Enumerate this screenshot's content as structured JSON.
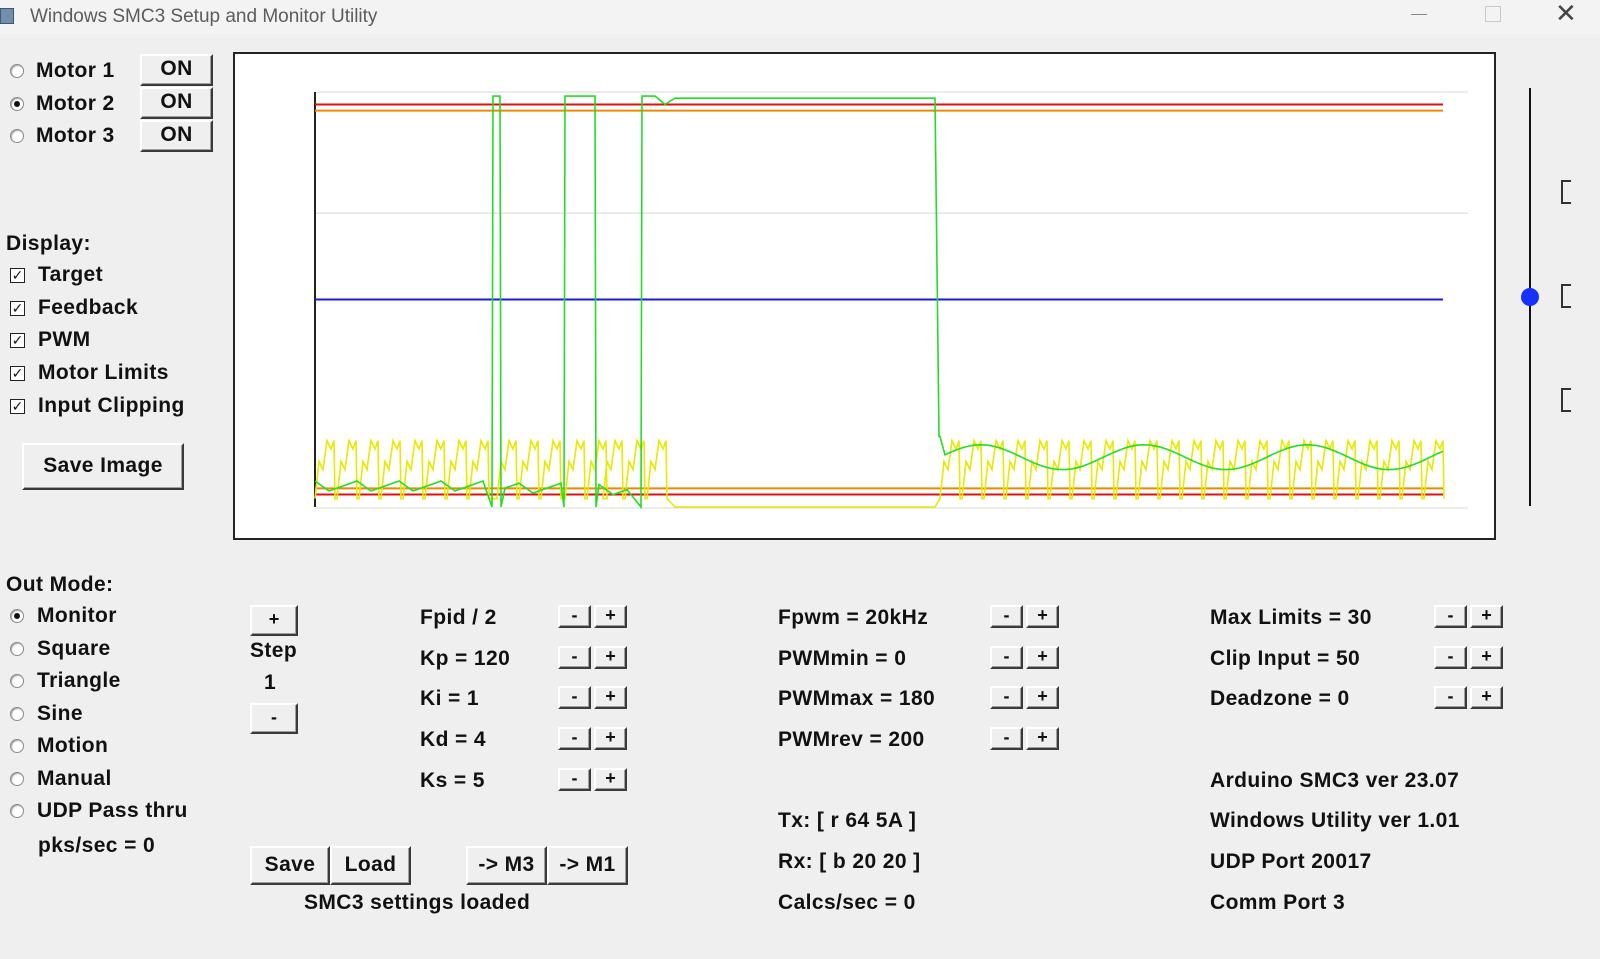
{
  "window": {
    "title": "Windows SMC3 Setup and Monitor Utility",
    "close_glyph": "✕"
  },
  "motors": [
    {
      "label": "Motor 1",
      "button": "ON",
      "selected": false
    },
    {
      "label": "Motor 2",
      "button": "ON",
      "selected": true
    },
    {
      "label": "Motor 3",
      "button": "ON",
      "selected": false
    }
  ],
  "display": {
    "heading": "Display:",
    "items": [
      "Target",
      "Feedback",
      "PWM",
      "Motor Limits",
      "Input Clipping"
    ],
    "check_mark": "✓",
    "save_image": "Save Image"
  },
  "out_mode": {
    "heading": "Out Mode:",
    "options": [
      "Monitor",
      "Square",
      "Triangle",
      "Sine",
      "Motion",
      "Manual",
      "UDP Pass thru"
    ],
    "selected": "Monitor",
    "pks": "pks/sec = 0"
  },
  "step": {
    "plus": "+",
    "label": "Step",
    "value": "1",
    "minus": "-"
  },
  "pid": {
    "params": [
      "Fpid / 2",
      "Kp = 120",
      "Ki = 1",
      "Kd = 4",
      "Ks = 5"
    ],
    "minus": "-",
    "plus": "+",
    "save": "Save",
    "load": "Load",
    "to_m3": "-> M3",
    "to_m1": "-> M1",
    "status": "SMC3 settings loaded"
  },
  "pwm": {
    "params": [
      "Fpwm = 20kHz",
      "PWMmin = 0",
      "PWMmax = 180",
      "PWMrev = 200"
    ],
    "tx": "Tx: [ r 64 5A ]",
    "rx": "Rx: [ b 20 20 ]",
    "calcs": "Calcs/sec = 0"
  },
  "limits": {
    "params": [
      "Max Limits = 30",
      "Clip Input = 50",
      "Deadzone = 0"
    ],
    "info": [
      "Arduino SMC3 ver 23.07",
      "Windows Utility ver 1.01",
      "UDP Port 20017",
      "Comm Port 3"
    ]
  },
  "colors": {
    "limit_outer": "#dd1111",
    "limit_inner": "#ee8800",
    "target": "#1a1ae0",
    "feedback": "#22dd22",
    "pwm": "#e8e800",
    "slider_knob": "#1530ff"
  },
  "slider": {
    "level": 0.5
  },
  "chart_data": {
    "type": "line",
    "series_colors": [
      "blue",
      "green",
      "yellow",
      "red",
      "orange"
    ],
    "target_level": 0.5,
    "limits": {
      "max": 0.97,
      "min": 0.03,
      "clip_max": 0.955,
      "clip_min": 0.045
    },
    "feedback_high": 0.99,
    "grid": "on"
  }
}
